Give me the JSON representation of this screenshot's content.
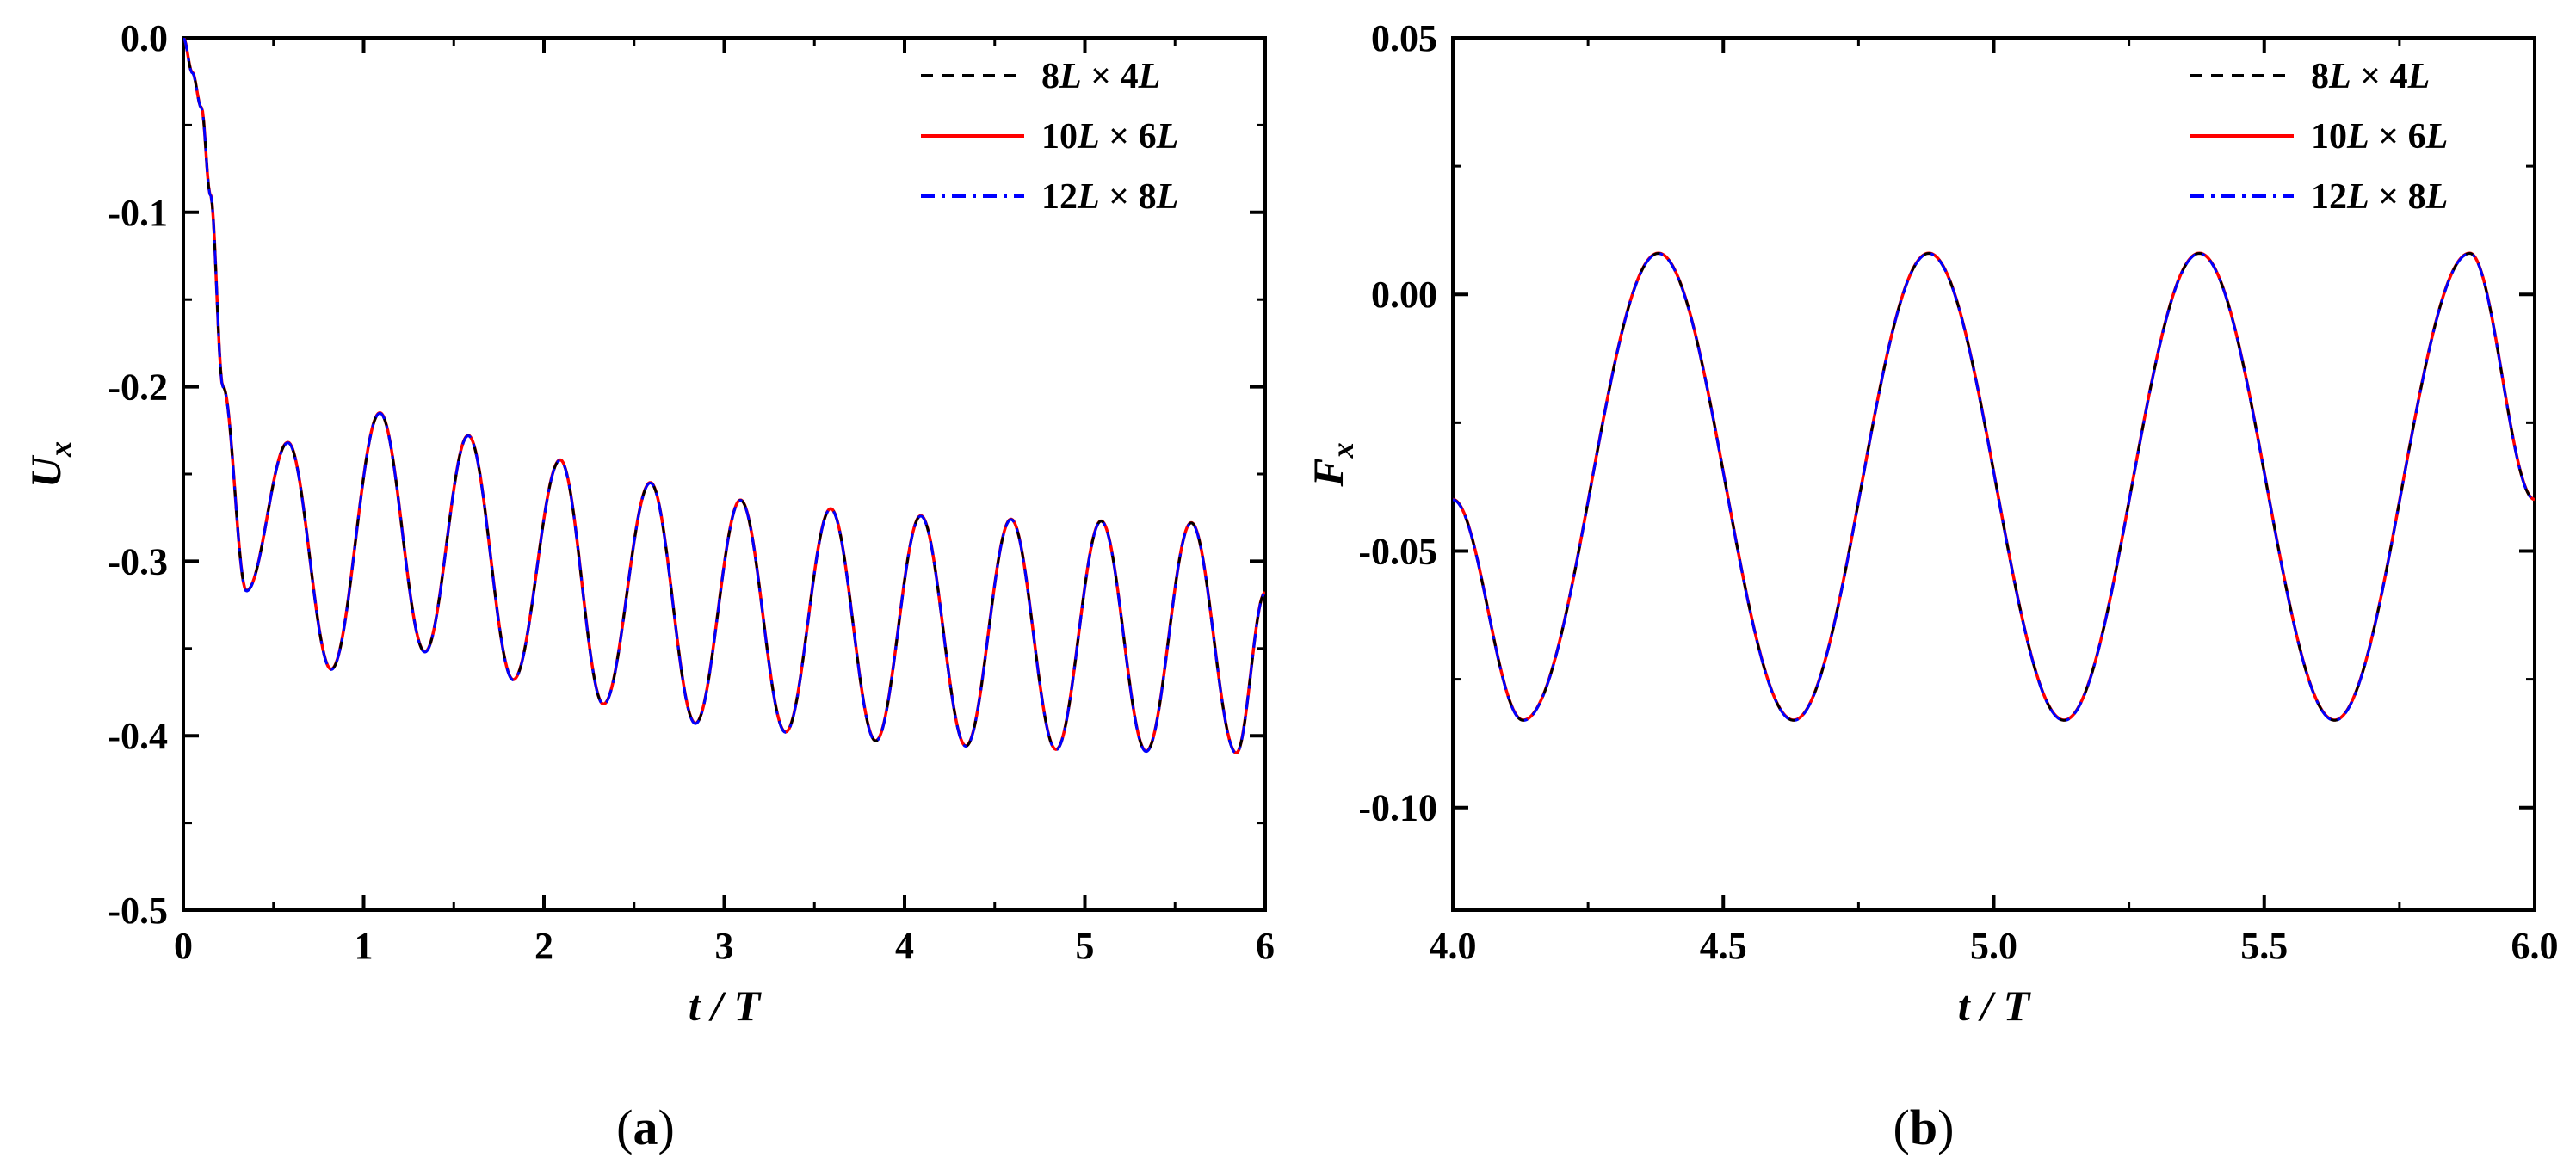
{
  "chart_data": [
    {
      "type": "line",
      "panel_label": "(a)",
      "xlabel": "t / T",
      "ylabel": "U",
      "ylabel_sub": "x",
      "xlim": [
        0,
        6
      ],
      "ylim": [
        -0.5,
        0.0
      ],
      "xticks": [
        "0",
        "1",
        "2",
        "3",
        "4",
        "5",
        "6"
      ],
      "yticks": [
        "0.0",
        "-0.1",
        "-0.2",
        "-0.3",
        "-0.4",
        "-0.5"
      ],
      "legend_position": "top-right",
      "grid": false,
      "series": [
        {
          "name": "8L × 4L",
          "color": "#000000",
          "style": "dashed"
        },
        {
          "name": "10L × 6L",
          "color": "#ff0000",
          "style": "solid"
        },
        {
          "name": "12L × 8L",
          "color": "#0000ff",
          "style": "dash-dot"
        }
      ],
      "signal_keypoints": [
        [
          0.0,
          0.0
        ],
        [
          0.05,
          -0.02
        ],
        [
          0.1,
          -0.04
        ],
        [
          0.15,
          -0.09
        ],
        [
          0.22,
          -0.2
        ],
        [
          0.35,
          -0.317
        ],
        [
          0.58,
          -0.232
        ],
        [
          0.82,
          -0.362
        ],
        [
          1.09,
          -0.215
        ],
        [
          1.34,
          -0.352
        ],
        [
          1.58,
          -0.228
        ],
        [
          1.83,
          -0.368
        ],
        [
          2.09,
          -0.242
        ],
        [
          2.33,
          -0.382
        ],
        [
          2.59,
          -0.255
        ],
        [
          2.84,
          -0.393
        ],
        [
          3.09,
          -0.265
        ],
        [
          3.34,
          -0.398
        ],
        [
          3.59,
          -0.27
        ],
        [
          3.84,
          -0.403
        ],
        [
          4.09,
          -0.274
        ],
        [
          4.34,
          -0.406
        ],
        [
          4.59,
          -0.276
        ],
        [
          4.84,
          -0.408
        ],
        [
          5.09,
          -0.277
        ],
        [
          5.34,
          -0.409
        ],
        [
          5.59,
          -0.278
        ],
        [
          5.84,
          -0.41
        ],
        [
          6.0,
          -0.318
        ]
      ]
    },
    {
      "type": "line",
      "panel_label": "(b)",
      "xlabel": "t / T",
      "ylabel": "F",
      "ylabel_sub": "x",
      "xlim": [
        4.0,
        6.0
      ],
      "ylim": [
        -0.12,
        0.05
      ],
      "xticks": [
        "4.0",
        "4.5",
        "5.0",
        "5.5",
        "6.0"
      ],
      "yticks": [
        "0.05",
        "0.00",
        "-0.05",
        "-0.10"
      ],
      "legend_position": "top-right",
      "grid": false,
      "series": [
        {
          "name": "8L × 4L",
          "color": "#000000",
          "style": "dashed"
        },
        {
          "name": "10L × 6L",
          "color": "#ff0000",
          "style": "solid"
        },
        {
          "name": "12L × 8L",
          "color": "#0000ff",
          "style": "dash-dot"
        }
      ],
      "signal_keypoints": [
        [
          4.0,
          -0.04
        ],
        [
          4.13,
          -0.083
        ],
        [
          4.38,
          0.008
        ],
        [
          4.63,
          -0.083
        ],
        [
          4.88,
          0.008
        ],
        [
          5.13,
          -0.083
        ],
        [
          5.38,
          0.008
        ],
        [
          5.63,
          -0.083
        ],
        [
          5.88,
          0.008
        ],
        [
          6.0,
          -0.04
        ]
      ]
    }
  ]
}
